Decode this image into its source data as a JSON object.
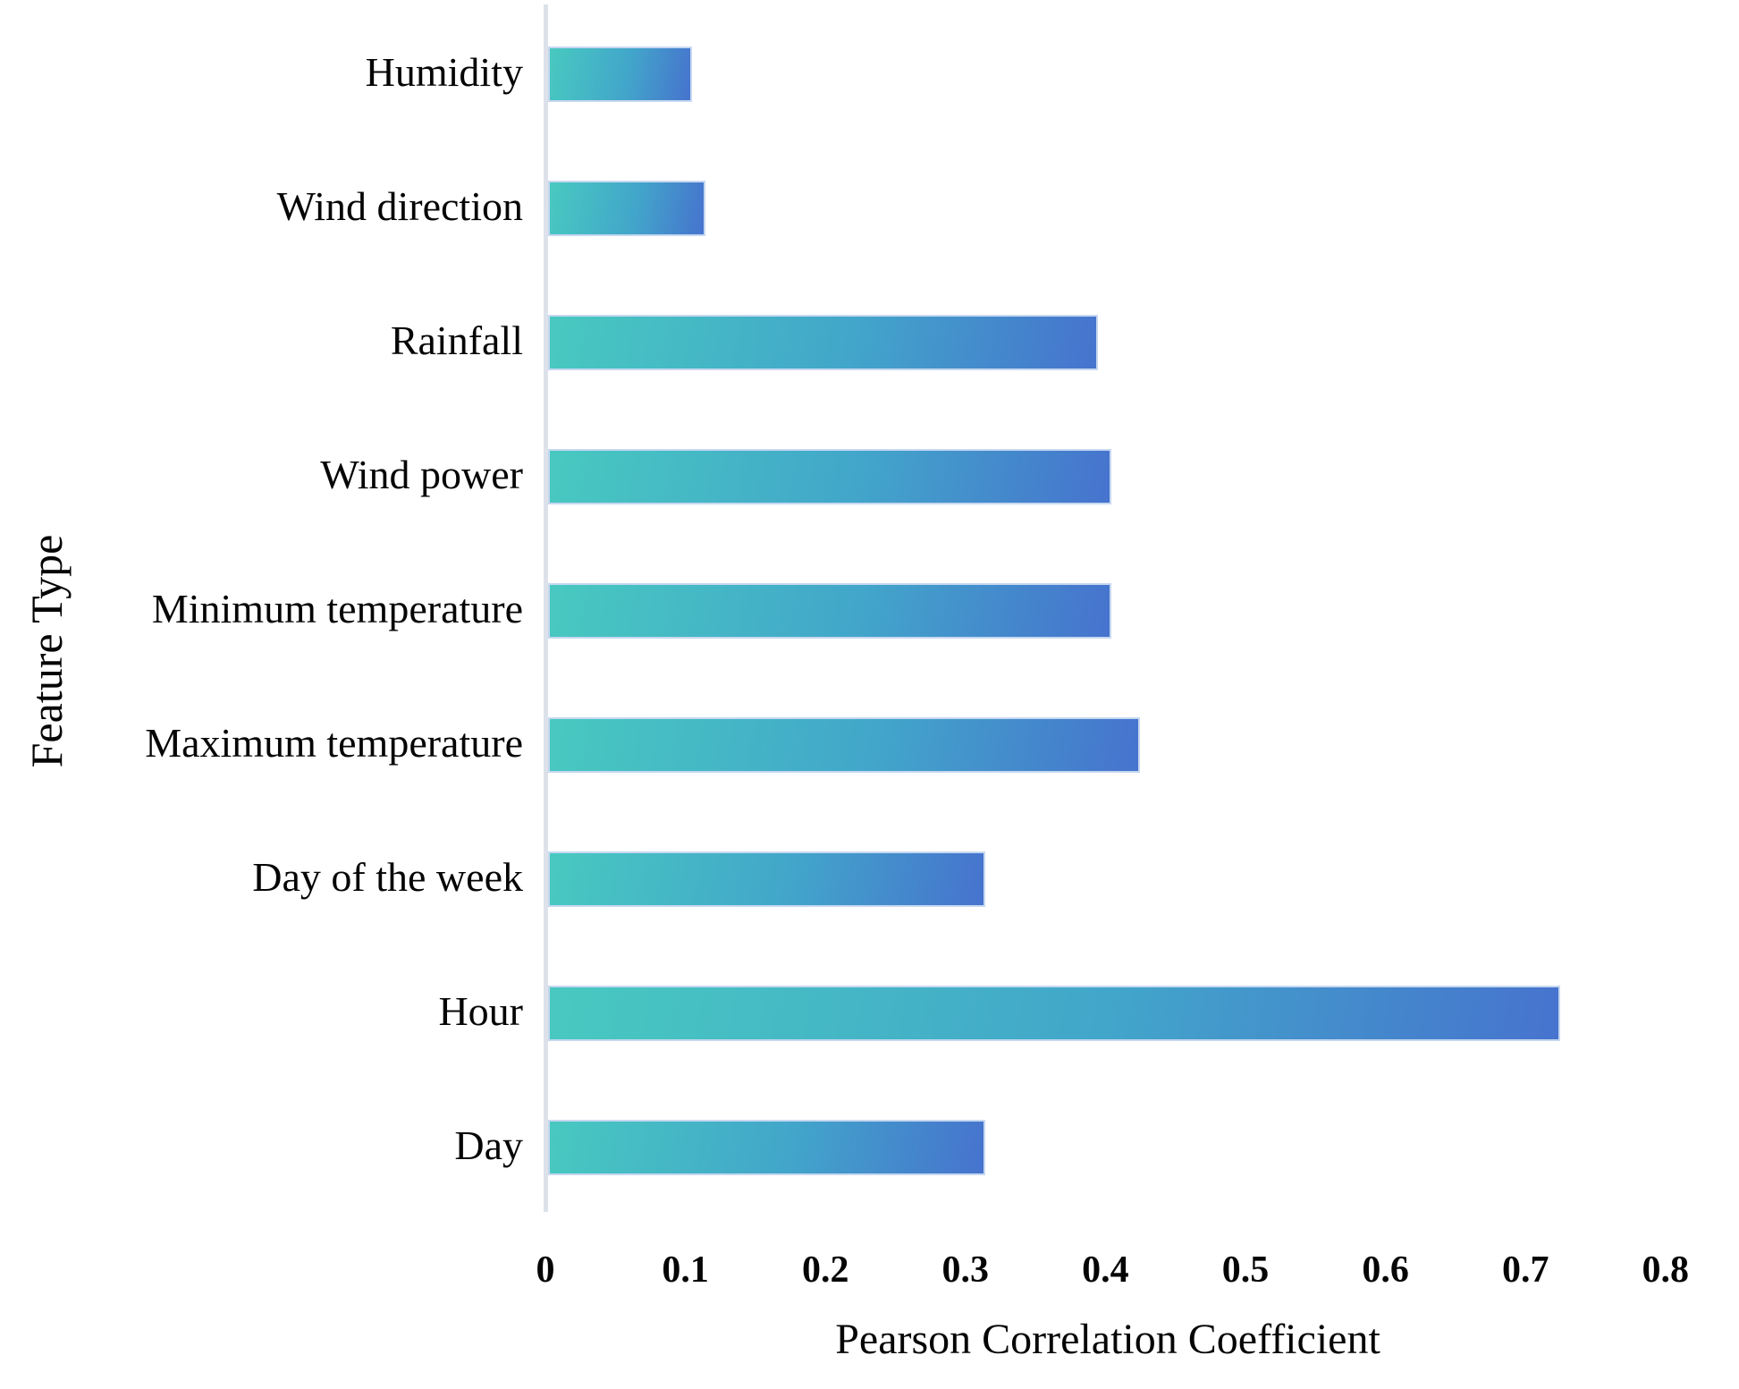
{
  "chart_data": {
    "type": "bar",
    "orientation": "horizontal",
    "title": "",
    "xlabel": "Pearson Correlation Coefficient",
    "ylabel": "Feature Type",
    "categories": [
      "Humidity",
      "Wind direction",
      "Rainfall",
      "Wind power",
      "Minimum temperature",
      "Maximum temperature",
      "Day of the week",
      "Hour",
      "Day"
    ],
    "values": [
      0.1,
      0.11,
      0.39,
      0.4,
      0.4,
      0.42,
      0.31,
      0.72,
      0.31
    ],
    "xlim": [
      0,
      0.8
    ],
    "x_ticks": [
      "0",
      "0.1",
      "0.2",
      "0.3",
      "0.4",
      "0.5",
      "0.6",
      "0.7",
      "0.8"
    ],
    "grid": false,
    "legend": false,
    "colors": {
      "bar_gradient_start": "#48c9c0",
      "bar_gradient_mid": "#42a6ca",
      "bar_gradient_end": "#4673ce",
      "bar_border": "#c6d8f0",
      "axis_line": "#dde1ea",
      "text": "#050505"
    }
  }
}
